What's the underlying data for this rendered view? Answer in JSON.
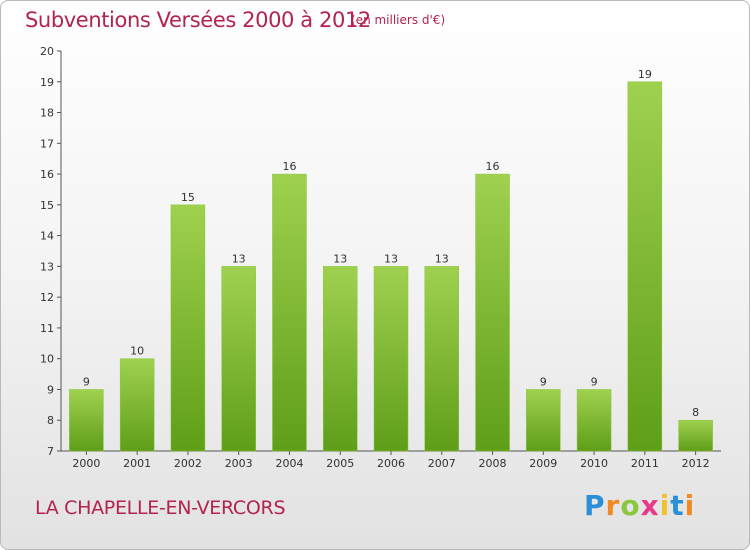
{
  "header": {
    "title": "Subventions Versées 2000 à 2012",
    "subtitle": "(en milliers d'€)"
  },
  "footer": {
    "commune": "LA CHAPELLE-EN-VERCORS",
    "logo_text": "Proxiti"
  },
  "colors": {
    "title": "#b3234e",
    "bar_top": "#9fd14f",
    "bar_bottom": "#5f9e19",
    "axis": "#333333"
  },
  "chart_data": {
    "type": "bar",
    "title": "Subventions Versées 2000 à 2012",
    "subtitle": "(en milliers d'€)",
    "xlabel": "",
    "ylabel": "",
    "categories": [
      "2000",
      "2001",
      "2002",
      "2003",
      "2004",
      "2005",
      "2006",
      "2007",
      "2008",
      "2009",
      "2010",
      "2011",
      "2012"
    ],
    "values": [
      9,
      10,
      15,
      13,
      16,
      13,
      13,
      13,
      16,
      9,
      9,
      19,
      8
    ],
    "ylim": [
      7,
      20
    ],
    "yticks": [
      7,
      8,
      9,
      10,
      11,
      12,
      13,
      14,
      15,
      16,
      17,
      18,
      19,
      20
    ],
    "grid": false,
    "legend": "none"
  }
}
